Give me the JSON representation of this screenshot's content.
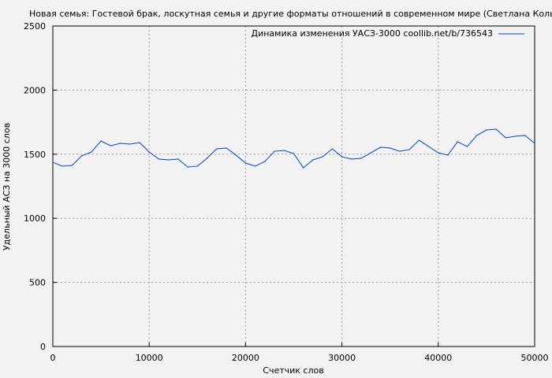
{
  "chart_data": {
    "type": "line",
    "title": "Новая семья: Гостевой брак, лоскутная семья и другие форматы отношений в современном мире (Светлана Кольчик",
    "xlabel": "Счетчик слов",
    "ylabel": "Удельный АСЗ на 3000 слов",
    "xlim": [
      0,
      50000
    ],
    "ylim": [
      0,
      2500
    ],
    "xticks": [
      "0",
      "10000",
      "20000",
      "30000",
      "40000",
      "50000"
    ],
    "yticks": [
      "0",
      "500",
      "1000",
      "1500",
      "2000",
      "2500"
    ],
    "grid": true,
    "legend_position": "top-right",
    "series": [
      {
        "name": "Динамика изменения УАСЗ-3000 coollib.net/b/736543",
        "color": "#0044bb",
        "x": [
          0,
          1000,
          2000,
          3000,
          4000,
          5000,
          6000,
          7000,
          8000,
          9000,
          10000,
          11000,
          12000,
          13000,
          14000,
          15000,
          16000,
          17000,
          18000,
          19000,
          20000,
          21000,
          22000,
          23000,
          24000,
          25000,
          26000,
          27000,
          28000,
          29000,
          30000,
          31000,
          32000,
          33000,
          34000,
          35000,
          36000,
          37000,
          38000,
          39000,
          40000,
          41000,
          42000,
          43000,
          44000,
          45000,
          46000,
          47000,
          48000,
          49000,
          50000
        ],
        "y": [
          1437,
          1407,
          1413,
          1487,
          1517,
          1603,
          1566,
          1585,
          1579,
          1591,
          1517,
          1462,
          1456,
          1462,
          1400,
          1407,
          1468,
          1542,
          1548,
          1493,
          1431,
          1407,
          1443,
          1523,
          1529,
          1505,
          1394,
          1456,
          1480,
          1542,
          1480,
          1462,
          1468,
          1511,
          1554,
          1548,
          1523,
          1536,
          1609,
          1560,
          1511,
          1493,
          1597,
          1560,
          1646,
          1689,
          1695,
          1628,
          1640,
          1646,
          1585
        ]
      }
    ]
  }
}
